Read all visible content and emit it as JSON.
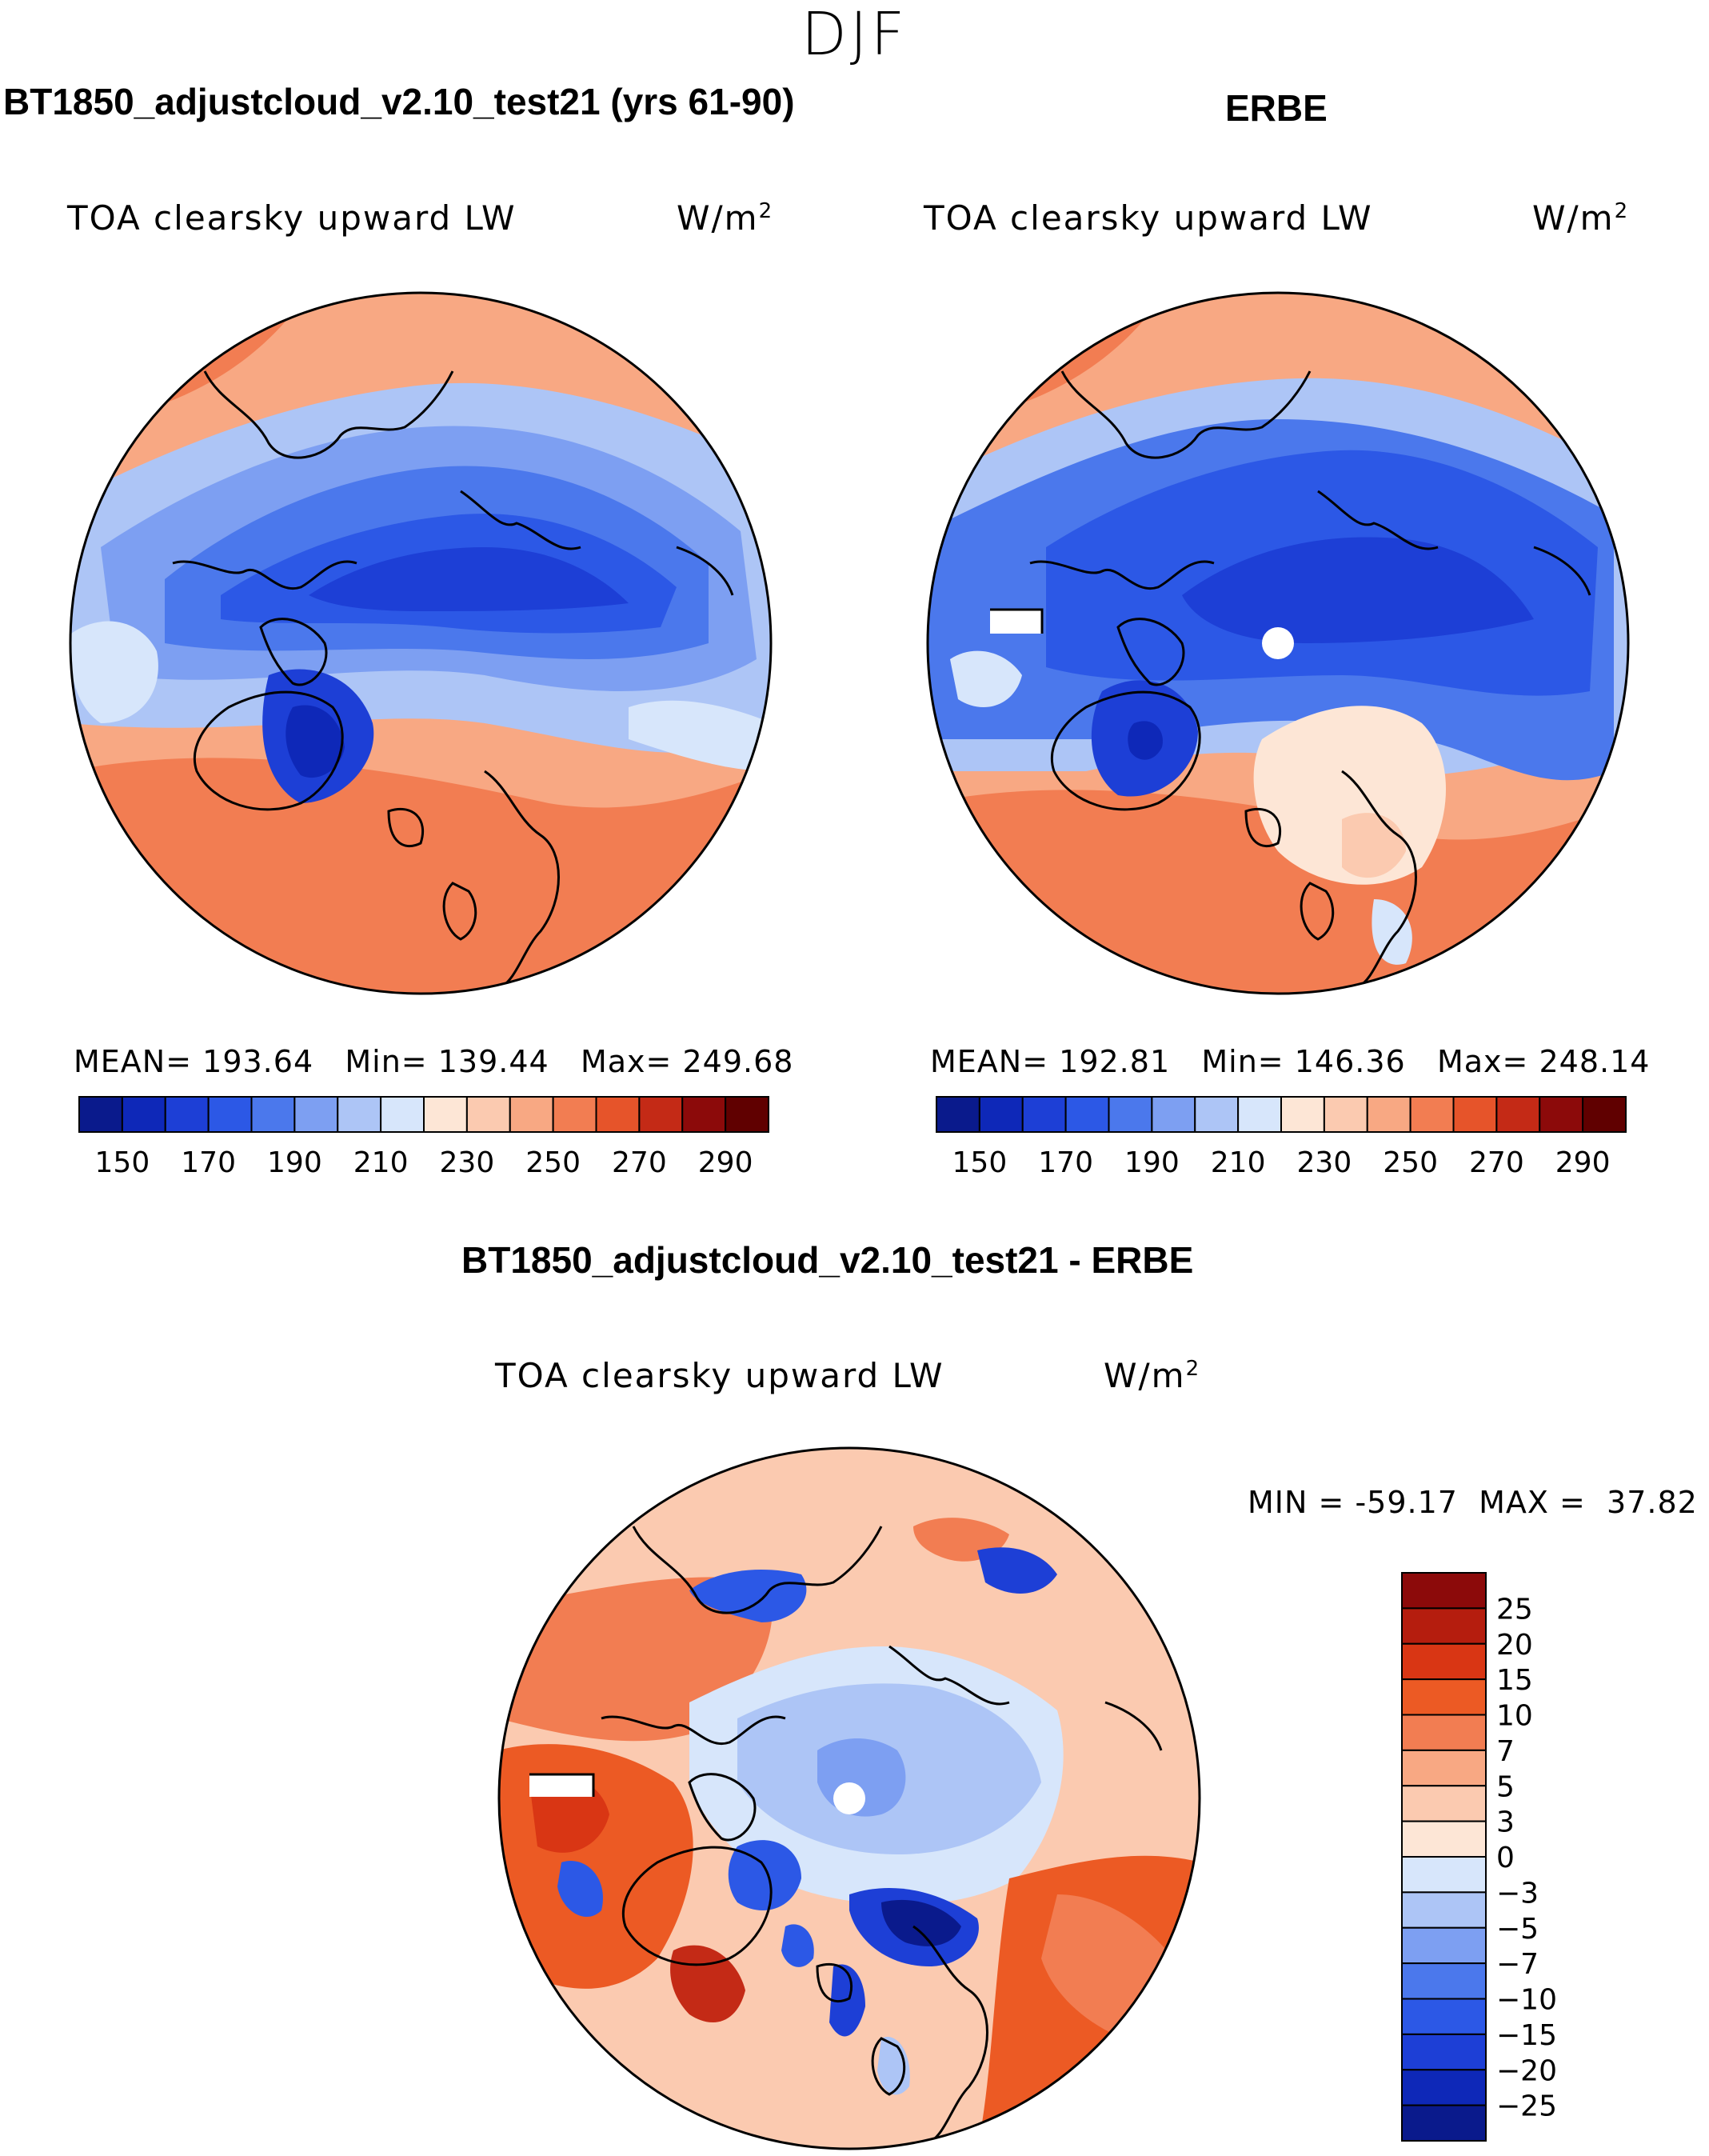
{
  "figure": {
    "season": "DJF",
    "units_prefix": "W/m",
    "units_exp": "2"
  },
  "panels": {
    "model": {
      "title": "BT1850_adjustcloud_v2.10_test21 (yrs 61-90)",
      "variable": "TOA clearsky upward LW",
      "stats": {
        "mean_label": "MEAN=",
        "mean": "193.64",
        "min_label": "Min=",
        "min": "139.44",
        "max_label": "Max=",
        "max": "249.68"
      }
    },
    "obs": {
      "title": "ERBE",
      "variable": "TOA clearsky upward LW",
      "stats": {
        "mean_label": "MEAN=",
        "mean": "192.81",
        "min_label": "Min=",
        "min": "146.36",
        "max_label": "Max=",
        "max": "248.14"
      }
    },
    "diff": {
      "title": "BT1850_adjustcloud_v2.10_test21 - ERBE",
      "variable": "TOA clearsky upward LW",
      "stats": {
        "min_label": "MIN =",
        "min": "-59.17",
        "max_label": "MAX =",
        "max": "37.82"
      }
    }
  },
  "chart_data": [
    {
      "type": "heatmap",
      "title": "BT1850_adjustcloud_v2.10_test21 (yrs 61-90)",
      "subtitle": "TOA clearsky upward LW",
      "projection": "north polar stereographic",
      "color_levels": [
        150,
        160,
        170,
        180,
        190,
        200,
        210,
        220,
        230,
        240,
        250,
        260,
        270,
        280,
        290
      ],
      "colorbar_ticks": [
        150,
        170,
        190,
        210,
        230,
        250,
        270,
        290
      ],
      "colors": [
        "#0a1a8c",
        "#0e28b8",
        "#1d3fd6",
        "#2c58e6",
        "#4b78ec",
        "#7d9ff2",
        "#adc5f6",
        "#d7e6fb",
        "#fde6d6",
        "#fbcab0",
        "#f8a883",
        "#f27d52",
        "#e6542a",
        "#c42a16",
        "#8c0a0a",
        "#600000"
      ],
      "mean": 193.64,
      "min": 139.44,
      "max": 249.68
    },
    {
      "type": "heatmap",
      "title": "ERBE",
      "subtitle": "TOA clearsky upward LW",
      "projection": "north polar stereographic",
      "color_levels": [
        150,
        160,
        170,
        180,
        190,
        200,
        210,
        220,
        230,
        240,
        250,
        260,
        270,
        280,
        290
      ],
      "colorbar_ticks": [
        150,
        170,
        190,
        210,
        230,
        250,
        270,
        290
      ],
      "mean": 192.81,
      "min": 146.36,
      "max": 248.14
    },
    {
      "type": "heatmap",
      "title": "BT1850_adjustcloud_v2.10_test21 - ERBE",
      "subtitle": "TOA clearsky upward LW",
      "projection": "north polar stereographic",
      "color_levels": [
        25,
        20,
        15,
        10,
        7,
        5,
        3,
        0,
        -3,
        -5,
        -7,
        -10,
        -15,
        -20,
        -25
      ],
      "colorbar_labels": [
        "25",
        "20",
        "15",
        "10",
        "7",
        "5",
        "3",
        "0",
        "−3",
        "−5",
        "−7",
        "−10",
        "−15",
        "−20",
        "−25"
      ],
      "colors": [
        "#8c0a0a",
        "#b51d0e",
        "#d93614",
        "#ec5a24",
        "#f27d52",
        "#f8a883",
        "#fbcab0",
        "#fde6d6",
        "#d7e6fb",
        "#adc5f6",
        "#7d9ff2",
        "#4b78ec",
        "#2c58e6",
        "#1d3fd6",
        "#0e28b8",
        "#0a1a8c"
      ],
      "min": -59.17,
      "max": 37.82
    }
  ]
}
